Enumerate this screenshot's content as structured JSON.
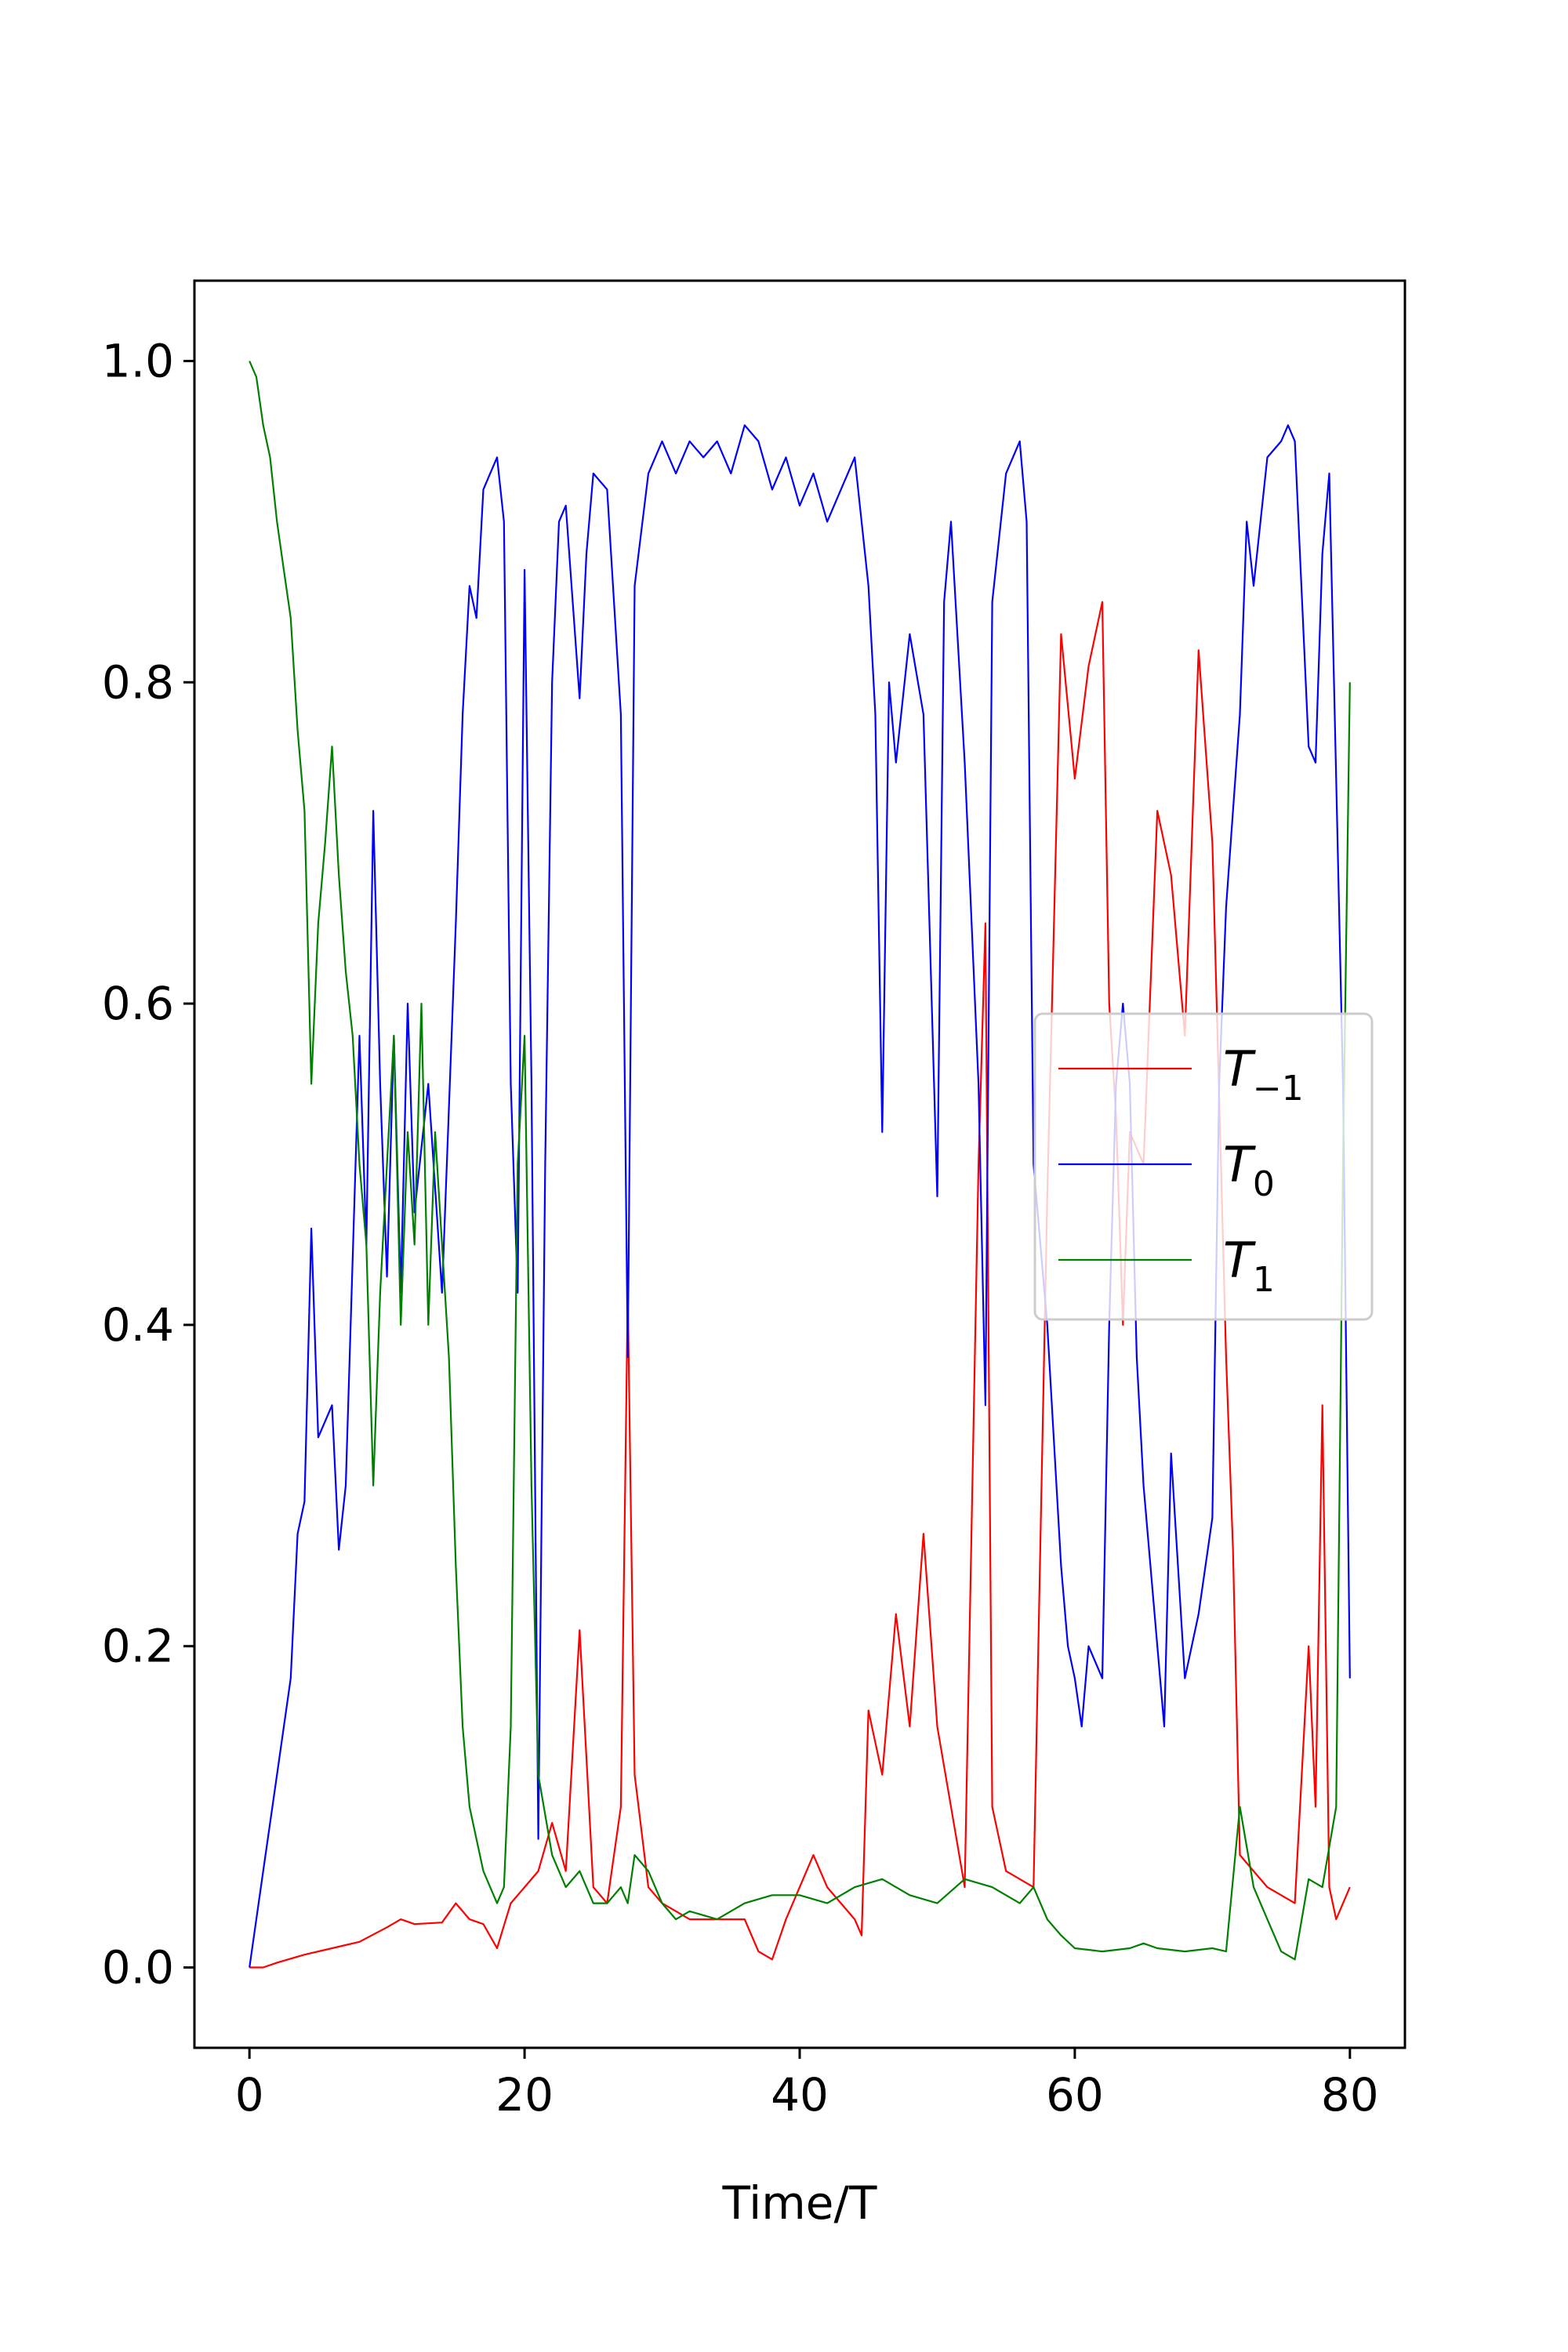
{
  "chart_data": {
    "type": "line",
    "title": "",
    "xlabel": "Time/T",
    "ylabel": "",
    "xlim": [
      -4,
      84
    ],
    "ylim": [
      -0.05,
      1.05
    ],
    "xticks": [
      0,
      20,
      40,
      60,
      80
    ],
    "xtick_labels": [
      "0",
      "20",
      "40",
      "60",
      "80"
    ],
    "yticks": [
      0.0,
      0.2,
      0.4,
      0.6,
      0.8,
      1.0
    ],
    "ytick_labels": [
      "0.0",
      "0.2",
      "0.4",
      "0.6",
      "0.8",
      "1.0"
    ],
    "grid": false,
    "legend_position": "center-right",
    "series": [
      {
        "name": "T",
        "subscript": "−1",
        "color": "#ff0000",
        "points": [
          [
            0,
            0
          ],
          [
            1,
            0.0
          ],
          [
            2,
            0.003
          ],
          [
            4,
            0.008
          ],
          [
            6,
            0.012
          ],
          [
            8,
            0.016
          ],
          [
            10,
            0.025
          ],
          [
            11,
            0.03
          ],
          [
            12,
            0.027
          ],
          [
            14,
            0.028
          ],
          [
            15,
            0.04
          ],
          [
            16,
            0.03
          ],
          [
            17,
            0.027
          ],
          [
            18,
            0.012
          ],
          [
            19,
            0.04
          ],
          [
            20,
            0.05
          ],
          [
            21,
            0.06
          ],
          [
            22,
            0.09
          ],
          [
            23,
            0.06
          ],
          [
            24,
            0.21
          ],
          [
            25,
            0.05
          ],
          [
            26,
            0.04
          ],
          [
            27,
            0.1
          ],
          [
            27.5,
            0.42
          ],
          [
            28,
            0.12
          ],
          [
            29,
            0.05
          ],
          [
            30,
            0.04
          ],
          [
            31,
            0.035
          ],
          [
            32,
            0.03
          ],
          [
            34,
            0.03
          ],
          [
            36,
            0.03
          ],
          [
            37,
            0.01
          ],
          [
            38,
            0.005
          ],
          [
            39,
            0.03
          ],
          [
            40,
            0.05
          ],
          [
            41,
            0.07
          ],
          [
            42,
            0.05
          ],
          [
            43,
            0.04
          ],
          [
            44,
            0.03
          ],
          [
            44.5,
            0.02
          ],
          [
            45,
            0.16
          ],
          [
            46,
            0.12
          ],
          [
            47,
            0.22
          ],
          [
            48,
            0.15
          ],
          [
            49,
            0.27
          ],
          [
            50,
            0.15
          ],
          [
            51,
            0.1
          ],
          [
            52,
            0.05
          ],
          [
            53,
            0.5
          ],
          [
            53.5,
            0.65
          ],
          [
            54,
            0.1
          ],
          [
            55,
            0.06
          ],
          [
            56,
            0.055
          ],
          [
            57,
            0.05
          ],
          [
            58,
            0.48
          ],
          [
            59,
            0.83
          ],
          [
            60,
            0.74
          ],
          [
            61,
            0.81
          ],
          [
            62,
            0.85
          ],
          [
            62.5,
            0.6
          ],
          [
            63,
            0.53
          ],
          [
            63.5,
            0.4
          ],
          [
            64,
            0.52
          ],
          [
            65,
            0.5
          ],
          [
            66,
            0.72
          ],
          [
            67,
            0.68
          ],
          [
            68,
            0.58
          ],
          [
            69,
            0.82
          ],
          [
            70,
            0.7
          ],
          [
            71,
            0.38
          ],
          [
            71.5,
            0.26
          ],
          [
            72,
            0.07
          ],
          [
            73,
            0.06
          ],
          [
            74,
            0.05
          ],
          [
            75,
            0.045
          ],
          [
            76,
            0.04
          ],
          [
            77,
            0.2
          ],
          [
            77.5,
            0.1
          ],
          [
            78,
            0.35
          ],
          [
            78.5,
            0.05
          ],
          [
            79,
            0.03
          ],
          [
            80,
            0.05
          ]
        ]
      },
      {
        "name": "T",
        "subscript": "0",
        "color": "#0000ff",
        "points": [
          [
            0,
            0
          ],
          [
            1,
            0.06
          ],
          [
            2,
            0.12
          ],
          [
            3,
            0.18
          ],
          [
            3.5,
            0.27
          ],
          [
            4,
            0.29
          ],
          [
            4.5,
            0.46
          ],
          [
            5,
            0.33
          ],
          [
            6,
            0.35
          ],
          [
            6.5,
            0.26
          ],
          [
            7,
            0.3
          ],
          [
            8,
            0.58
          ],
          [
            8.5,
            0.45
          ],
          [
            9,
            0.72
          ],
          [
            9.5,
            0.55
          ],
          [
            10,
            0.43
          ],
          [
            10.5,
            0.58
          ],
          [
            11,
            0.42
          ],
          [
            11.5,
            0.6
          ],
          [
            12,
            0.47
          ],
          [
            13,
            0.55
          ],
          [
            14,
            0.42
          ],
          [
            15,
            0.65
          ],
          [
            15.5,
            0.78
          ],
          [
            16,
            0.86
          ],
          [
            16.5,
            0.84
          ],
          [
            17,
            0.92
          ],
          [
            17.5,
            0.93
          ],
          [
            18,
            0.94
          ],
          [
            18.5,
            0.9
          ],
          [
            19,
            0.55
          ],
          [
            19.5,
            0.42
          ],
          [
            20,
            0.87
          ],
          [
            20.5,
            0.55
          ],
          [
            21,
            0.08
          ],
          [
            21.5,
            0.5
          ],
          [
            22,
            0.8
          ],
          [
            22.5,
            0.9
          ],
          [
            23,
            0.91
          ],
          [
            24,
            0.79
          ],
          [
            24.5,
            0.88
          ],
          [
            25,
            0.93
          ],
          [
            26,
            0.92
          ],
          [
            27,
            0.78
          ],
          [
            27.5,
            0.38
          ],
          [
            28,
            0.86
          ],
          [
            29,
            0.93
          ],
          [
            30,
            0.95
          ],
          [
            31,
            0.93
          ],
          [
            32,
            0.95
          ],
          [
            33,
            0.94
          ],
          [
            34,
            0.95
          ],
          [
            35,
            0.93
          ],
          [
            36,
            0.96
          ],
          [
            37,
            0.95
          ],
          [
            38,
            0.92
          ],
          [
            39,
            0.94
          ],
          [
            40,
            0.91
          ],
          [
            41,
            0.93
          ],
          [
            42,
            0.9
          ],
          [
            43,
            0.92
          ],
          [
            44,
            0.94
          ],
          [
            45,
            0.86
          ],
          [
            45.5,
            0.78
          ],
          [
            46,
            0.52
          ],
          [
            46.5,
            0.8
          ],
          [
            47,
            0.75
          ],
          [
            48,
            0.83
          ],
          [
            49,
            0.78
          ],
          [
            50,
            0.48
          ],
          [
            50.5,
            0.85
          ],
          [
            51,
            0.9
          ],
          [
            52,
            0.75
          ],
          [
            52.5,
            0.65
          ],
          [
            53,
            0.55
          ],
          [
            53.5,
            0.35
          ],
          [
            54,
            0.85
          ],
          [
            55,
            0.93
          ],
          [
            56,
            0.95
          ],
          [
            56.5,
            0.9
          ],
          [
            57,
            0.5
          ],
          [
            58,
            0.4
          ],
          [
            59,
            0.25
          ],
          [
            59.5,
            0.2
          ],
          [
            60,
            0.18
          ],
          [
            60.5,
            0.15
          ],
          [
            61,
            0.2
          ],
          [
            62,
            0.18
          ],
          [
            62.5,
            0.4
          ],
          [
            63,
            0.55
          ],
          [
            63.5,
            0.6
          ],
          [
            64,
            0.55
          ],
          [
            64.5,
            0.38
          ],
          [
            65,
            0.3
          ],
          [
            66,
            0.2
          ],
          [
            66.5,
            0.15
          ],
          [
            67,
            0.32
          ],
          [
            68,
            0.18
          ],
          [
            69,
            0.22
          ],
          [
            70,
            0.28
          ],
          [
            70.5,
            0.55
          ],
          [
            71,
            0.66
          ],
          [
            72,
            0.78
          ],
          [
            72.5,
            0.9
          ],
          [
            73,
            0.86
          ],
          [
            74,
            0.94
          ],
          [
            75,
            0.95
          ],
          [
            75.5,
            0.96
          ],
          [
            76,
            0.95
          ],
          [
            77,
            0.76
          ],
          [
            77.5,
            0.75
          ],
          [
            78,
            0.88
          ],
          [
            78.5,
            0.93
          ],
          [
            79,
            0.74
          ],
          [
            79.5,
            0.55
          ],
          [
            80,
            0.18
          ]
        ]
      },
      {
        "name": "T",
        "subscript": "1",
        "color": "#008000",
        "points": [
          [
            0,
            1.0
          ],
          [
            0.5,
            0.99
          ],
          [
            1,
            0.96
          ],
          [
            1.5,
            0.94
          ],
          [
            2,
            0.9
          ],
          [
            2.5,
            0.87
          ],
          [
            3,
            0.84
          ],
          [
            3.5,
            0.77
          ],
          [
            4,
            0.72
          ],
          [
            4.5,
            0.55
          ],
          [
            5,
            0.65
          ],
          [
            5.5,
            0.7
          ],
          [
            6,
            0.76
          ],
          [
            6.5,
            0.68
          ],
          [
            7,
            0.62
          ],
          [
            7.5,
            0.58
          ],
          [
            8,
            0.5
          ],
          [
            8.5,
            0.45
          ],
          [
            9,
            0.3
          ],
          [
            9.5,
            0.42
          ],
          [
            10,
            0.5
          ],
          [
            10.5,
            0.58
          ],
          [
            11,
            0.4
          ],
          [
            11.5,
            0.52
          ],
          [
            12,
            0.45
          ],
          [
            12.5,
            0.6
          ],
          [
            13,
            0.4
          ],
          [
            13.5,
            0.52
          ],
          [
            14,
            0.45
          ],
          [
            14.5,
            0.38
          ],
          [
            15,
            0.25
          ],
          [
            15.5,
            0.15
          ],
          [
            16,
            0.1
          ],
          [
            17,
            0.06
          ],
          [
            18,
            0.04
          ],
          [
            18.5,
            0.05
          ],
          [
            19,
            0.15
          ],
          [
            19.5,
            0.5
          ],
          [
            20,
            0.58
          ],
          [
            20.5,
            0.3
          ],
          [
            21,
            0.12
          ],
          [
            22,
            0.07
          ],
          [
            23,
            0.05
          ],
          [
            24,
            0.06
          ],
          [
            25,
            0.04
          ],
          [
            26,
            0.04
          ],
          [
            27,
            0.05
          ],
          [
            27.5,
            0.04
          ],
          [
            28,
            0.07
          ],
          [
            29,
            0.06
          ],
          [
            30,
            0.04
          ],
          [
            31,
            0.03
          ],
          [
            32,
            0.035
          ],
          [
            34,
            0.03
          ],
          [
            36,
            0.04
          ],
          [
            38,
            0.045
          ],
          [
            40,
            0.045
          ],
          [
            42,
            0.04
          ],
          [
            44,
            0.05
          ],
          [
            46,
            0.055
          ],
          [
            48,
            0.045
          ],
          [
            50,
            0.04
          ],
          [
            52,
            0.055
          ],
          [
            54,
            0.05
          ],
          [
            56,
            0.04
          ],
          [
            57,
            0.05
          ],
          [
            58,
            0.03
          ],
          [
            59,
            0.02
          ],
          [
            60,
            0.012
          ],
          [
            62,
            0.01
          ],
          [
            64,
            0.012
          ],
          [
            65,
            0.015
          ],
          [
            66,
            0.012
          ],
          [
            68,
            0.01
          ],
          [
            70,
            0.012
          ],
          [
            71,
            0.01
          ],
          [
            72,
            0.1
          ],
          [
            73,
            0.05
          ],
          [
            74,
            0.03
          ],
          [
            75,
            0.01
          ],
          [
            76,
            0.005
          ],
          [
            77,
            0.055
          ],
          [
            78,
            0.05
          ],
          [
            79,
            0.1
          ],
          [
            79.5,
            0.5
          ],
          [
            80,
            0.8
          ]
        ]
      }
    ]
  }
}
